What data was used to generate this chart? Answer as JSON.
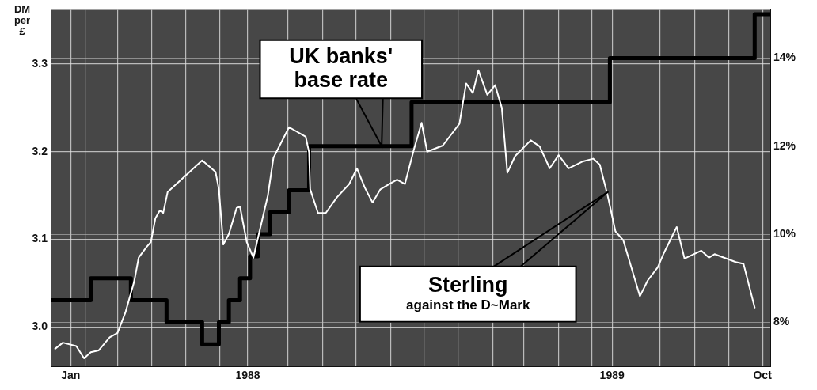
{
  "chart_data": {
    "type": "line",
    "ylabel": "DM per £",
    "xlim": [
      "1988-01-01",
      "1989-10-08"
    ],
    "xticks": [
      {
        "value": "1988-01-19",
        "label": "Jan"
      },
      {
        "value": "1988-02-01",
        "label": null
      },
      {
        "value": "1988-03-01",
        "label": null
      },
      {
        "value": "1988-04-01",
        "label": null
      },
      {
        "value": "1988-05-01",
        "label": null
      },
      {
        "value": "1988-06-01",
        "label": null
      },
      {
        "value": "1988-06-26",
        "label": "1988"
      },
      {
        "value": "1988-08-01",
        "label": null
      },
      {
        "value": "1988-09-01",
        "label": null
      },
      {
        "value": "1988-10-01",
        "label": null
      },
      {
        "value": "1988-11-01",
        "label": null
      },
      {
        "value": "1988-12-01",
        "label": null
      },
      {
        "value": "1989-01-01",
        "label": null
      },
      {
        "value": "1989-02-01",
        "label": null
      },
      {
        "value": "1989-03-01",
        "label": null
      },
      {
        "value": "1989-04-01",
        "label": null
      },
      {
        "value": "1989-05-01",
        "label": null
      },
      {
        "value": "1989-05-19",
        "label": "1989"
      },
      {
        "value": "1989-07-01",
        "label": null
      },
      {
        "value": "1989-08-01",
        "label": null
      },
      {
        "value": "1989-09-01",
        "label": null
      },
      {
        "value": "1989-10-01",
        "label": "Oct"
      }
    ],
    "ylim": [
      2.955,
      3.362
    ],
    "yticks": [
      {
        "value": 3,
        "label": "3.0"
      },
      3.1,
      3.2,
      3.3
    ],
    "y2lim": [
      7,
      15.1
    ],
    "y2ticks": [
      {
        "value": 8,
        "label": "8%"
      },
      {
        "value": 10,
        "label": "10%"
      },
      {
        "value": 12,
        "label": "12%"
      },
      {
        "value": 14,
        "label": "14%"
      }
    ],
    "grid": true,
    "series": [
      {
        "name": "Sterling against the D~Mark",
        "color": "#ffffff",
        "x": [
          "1988-01-05",
          "1988-01-12",
          "1988-01-24",
          "1988-01-31",
          "1988-02-06",
          "1988-02-13",
          "1988-02-23",
          "1988-03-01",
          "1988-03-08",
          "1988-03-16",
          "1988-03-20",
          "1988-03-27",
          "1988-03-31",
          "1988-04-04",
          "1988-04-08",
          "1988-04-11",
          "1988-04-15",
          "1988-05-16",
          "1988-05-28",
          "1988-05-31",
          "1988-06-04",
          "1988-06-09",
          "1988-06-16",
          "1988-06-19",
          "1988-06-25",
          "1988-07-01",
          "1988-07-07",
          "1988-07-14",
          "1988-07-19",
          "1988-08-02",
          "1988-08-17",
          "1988-08-20",
          "1988-08-21",
          "1988-08-28",
          "1988-09-04",
          "1988-09-14",
          "1988-09-25",
          "1988-10-02",
          "1988-10-09",
          "1988-10-16",
          "1988-10-23",
          "1988-10-31",
          "1988-11-07",
          "1988-11-14",
          "1988-11-22",
          "1988-11-29",
          "1988-12-04",
          "1988-12-18",
          "1989-01-02",
          "1989-01-08",
          "1989-01-14",
          "1989-01-19",
          "1989-01-27",
          "1989-02-03",
          "1989-02-09",
          "1989-02-14",
          "1989-02-21",
          "1989-03-07",
          "1989-03-15",
          "1989-03-24",
          "1989-04-01",
          "1989-04-10",
          "1989-04-23",
          "1989-05-02",
          "1989-05-08",
          "1989-05-15",
          "1989-05-22",
          "1989-05-29",
          "1989-06-13",
          "1989-06-20",
          "1989-06-29",
          "1989-07-04",
          "1989-07-16",
          "1989-07-23",
          "1989-08-07",
          "1989-08-14",
          "1989-08-19",
          "1989-09-07",
          "1989-09-14",
          "1989-09-24"
        ],
        "values": [
          2.975,
          2.982,
          2.978,
          2.964,
          2.971,
          2.973,
          2.988,
          2.993,
          3.016,
          3.052,
          3.079,
          3.091,
          3.097,
          3.124,
          3.133,
          3.13,
          3.154,
          3.19,
          3.177,
          3.157,
          3.094,
          3.106,
          3.136,
          3.137,
          3.097,
          3.079,
          3.112,
          3.15,
          3.193,
          3.228,
          3.217,
          3.199,
          3.157,
          3.13,
          3.13,
          3.148,
          3.163,
          3.181,
          3.159,
          3.142,
          3.157,
          3.163,
          3.168,
          3.163,
          3.202,
          3.233,
          3.2,
          3.207,
          3.232,
          3.278,
          3.267,
          3.293,
          3.265,
          3.276,
          3.25,
          3.176,
          3.195,
          3.213,
          3.206,
          3.181,
          3.196,
          3.181,
          3.189,
          3.192,
          3.185,
          3.15,
          3.109,
          3.099,
          3.035,
          3.053,
          3.068,
          3.083,
          3.114,
          3.078,
          3.087,
          3.079,
          3.083,
          3.074,
          3.072,
          3.022
        ]
      },
      {
        "name": "UK banks' base rate",
        "type": "step",
        "axis": "y2",
        "color": "#000000",
        "x": [
          "1988-01-01",
          "1988-02-06",
          "1988-03-13",
          "1988-04-14",
          "1988-05-16",
          "1988-05-31",
          "1988-06-09",
          "1988-06-19",
          "1988-06-28",
          "1988-07-05",
          "1988-07-16",
          "1988-08-02",
          "1988-08-20",
          "1988-11-20",
          "1989-05-17",
          "1989-09-24",
          "1989-10-08"
        ],
        "values": [
          8.5,
          9,
          8.5,
          8,
          7.5,
          8,
          8.5,
          9,
          9.5,
          10,
          10.5,
          11,
          12,
          13,
          14,
          15,
          15
        ]
      }
    ]
  }
}
